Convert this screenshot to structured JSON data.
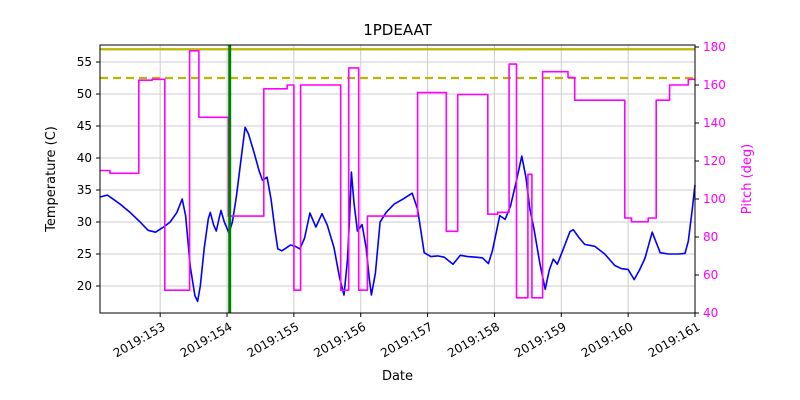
{
  "chart_data": {
    "type": "line",
    "title": "1PDEAAT",
    "xlabel": "Date",
    "ylabel_left": "Temperature (C)",
    "ylabel_right": "Pitch (deg)",
    "xlim": [
      152.1,
      161.0
    ],
    "ylim_left": [
      15.78,
      57.66
    ],
    "ylim_right": [
      40,
      181.05
    ],
    "grid": true,
    "legend": "none",
    "x_ticks": {
      "values": [
        153,
        154,
        155,
        156,
        157,
        158,
        159,
        160,
        161
      ],
      "labels": [
        "2019:153",
        "2019:154",
        "2019:155",
        "2019:156",
        "2019:157",
        "2019:158",
        "2019:159",
        "2019:160",
        "2019:161"
      ]
    },
    "y_left_ticks": [
      20,
      25,
      30,
      35,
      40,
      45,
      50,
      55
    ],
    "y_right_ticks": [
      40,
      60,
      80,
      100,
      120,
      140,
      160,
      180
    ],
    "colors": {
      "temperature": "#0000ff",
      "pitch": "#ff00ff",
      "limit": "#b8b800",
      "event": "#008000",
      "grid": "#cccccc",
      "frame": "#000000",
      "tick_text": "#000000"
    },
    "limit_lines": [
      {
        "name": "yellow-limit-line",
        "value": 57.0,
        "axis": "left",
        "style": "solid",
        "color_key": "limit"
      },
      {
        "name": "planning-limit-line",
        "value": 52.5,
        "axis": "left",
        "style": "dashed",
        "color_key": "limit"
      }
    ],
    "event_lines": [
      {
        "name": "current-time-line",
        "value": 154.04,
        "color_key": "event",
        "width": 3
      }
    ],
    "series": [
      {
        "name": "temperature",
        "axis": "left",
        "style": "line",
        "color_key": "temperature",
        "points": [
          [
            152.1,
            33.9
          ],
          [
            152.21,
            34.2
          ],
          [
            152.28,
            33.7
          ],
          [
            152.4,
            32.8
          ],
          [
            152.55,
            31.5
          ],
          [
            152.7,
            30.0
          ],
          [
            152.82,
            28.7
          ],
          [
            152.93,
            28.4
          ],
          [
            153.05,
            29.2
          ],
          [
            153.15,
            30.0
          ],
          [
            153.25,
            31.5
          ],
          [
            153.33,
            33.6
          ],
          [
            153.38,
            31.0
          ],
          [
            153.45,
            23.0
          ],
          [
            153.52,
            18.5
          ],
          [
            153.56,
            17.6
          ],
          [
            153.6,
            20.0
          ],
          [
            153.66,
            26.0
          ],
          [
            153.72,
            30.5
          ],
          [
            153.75,
            31.5
          ],
          [
            153.8,
            29.5
          ],
          [
            153.84,
            28.6
          ],
          [
            153.88,
            30.5
          ],
          [
            153.91,
            31.8
          ],
          [
            153.96,
            30.0
          ],
          [
            154.03,
            28.3
          ],
          [
            154.08,
            30.0
          ],
          [
            154.14,
            34.0
          ],
          [
            154.2,
            39.0
          ],
          [
            154.27,
            44.8
          ],
          [
            154.32,
            43.8
          ],
          [
            154.4,
            41.0
          ],
          [
            154.48,
            38.0
          ],
          [
            154.53,
            36.5
          ],
          [
            154.6,
            37.0
          ],
          [
            154.66,
            33.5
          ],
          [
            154.72,
            28.5
          ],
          [
            154.76,
            25.8
          ],
          [
            154.82,
            25.5
          ],
          [
            154.88,
            25.9
          ],
          [
            154.95,
            26.4
          ],
          [
            155.02,
            26.2
          ],
          [
            155.09,
            25.8
          ],
          [
            155.16,
            27.5
          ],
          [
            155.24,
            31.4
          ],
          [
            155.33,
            29.2
          ],
          [
            155.42,
            31.3
          ],
          [
            155.5,
            29.5
          ],
          [
            155.6,
            26.0
          ],
          [
            155.68,
            21.5
          ],
          [
            155.75,
            18.6
          ],
          [
            155.8,
            24.0
          ],
          [
            155.83,
            30.0
          ],
          [
            155.86,
            37.8
          ],
          [
            155.9,
            33.0
          ],
          [
            155.95,
            28.6
          ],
          [
            156.02,
            29.6
          ],
          [
            156.08,
            26.0
          ],
          [
            156.13,
            21.0
          ],
          [
            156.16,
            18.6
          ],
          [
            156.22,
            22.0
          ],
          [
            156.29,
            30.0
          ],
          [
            156.38,
            31.5
          ],
          [
            156.5,
            32.8
          ],
          [
            156.62,
            33.5
          ],
          [
            156.77,
            34.5
          ],
          [
            156.85,
            32.0
          ],
          [
            156.95,
            25.2
          ],
          [
            157.05,
            24.6
          ],
          [
            157.15,
            24.7
          ],
          [
            157.25,
            24.5
          ],
          [
            157.38,
            23.4
          ],
          [
            157.49,
            24.8
          ],
          [
            157.6,
            24.6
          ],
          [
            157.72,
            24.5
          ],
          [
            157.82,
            24.4
          ],
          [
            157.91,
            23.5
          ],
          [
            157.97,
            25.5
          ],
          [
            158.08,
            31.0
          ],
          [
            158.16,
            30.4
          ],
          [
            158.24,
            32.5
          ],
          [
            158.33,
            36.5
          ],
          [
            158.41,
            40.3
          ],
          [
            158.47,
            37.0
          ],
          [
            158.53,
            32.0
          ],
          [
            158.59,
            29.0
          ],
          [
            158.68,
            23.5
          ],
          [
            158.76,
            19.5
          ],
          [
            158.82,
            22.5
          ],
          [
            158.88,
            24.2
          ],
          [
            158.94,
            23.4
          ],
          [
            159.02,
            25.5
          ],
          [
            159.13,
            28.5
          ],
          [
            159.18,
            28.8
          ],
          [
            159.27,
            27.5
          ],
          [
            159.35,
            26.5
          ],
          [
            159.5,
            26.2
          ],
          [
            159.65,
            25.0
          ],
          [
            159.8,
            23.2
          ],
          [
            159.9,
            22.7
          ],
          [
            160.0,
            22.6
          ],
          [
            160.09,
            21.0
          ],
          [
            160.17,
            22.5
          ],
          [
            160.25,
            24.3
          ],
          [
            160.36,
            28.4
          ],
          [
            160.48,
            25.2
          ],
          [
            160.6,
            25.0
          ],
          [
            160.75,
            25.0
          ],
          [
            160.85,
            25.1
          ],
          [
            160.9,
            27.0
          ],
          [
            160.96,
            32.0
          ],
          [
            161.0,
            35.8
          ]
        ]
      },
      {
        "name": "pitch",
        "axis": "right",
        "style": "step",
        "color_key": "pitch",
        "points": [
          [
            152.1,
            115
          ],
          [
            152.25,
            113.5
          ],
          [
            152.68,
            162.5
          ],
          [
            152.88,
            163
          ],
          [
            153.07,
            52
          ],
          [
            153.44,
            178
          ],
          [
            153.58,
            143
          ],
          [
            154.02,
            91
          ],
          [
            154.55,
            158
          ],
          [
            154.9,
            160
          ],
          [
            155.0,
            52
          ],
          [
            155.1,
            160
          ],
          [
            155.7,
            52
          ],
          [
            155.82,
            169
          ],
          [
            155.97,
            52
          ],
          [
            156.1,
            91
          ],
          [
            156.85,
            156
          ],
          [
            157.28,
            83
          ],
          [
            157.45,
            155
          ],
          [
            157.9,
            92
          ],
          [
            158.05,
            93
          ],
          [
            158.22,
            171
          ],
          [
            158.33,
            48
          ],
          [
            158.5,
            113
          ],
          [
            158.56,
            48
          ],
          [
            158.72,
            167
          ],
          [
            159.1,
            164
          ],
          [
            159.2,
            152
          ],
          [
            159.95,
            90
          ],
          [
            160.05,
            88
          ],
          [
            160.3,
            90
          ],
          [
            160.42,
            152
          ],
          [
            160.62,
            160
          ],
          [
            160.9,
            163
          ],
          [
            161.0,
            163
          ]
        ]
      }
    ]
  }
}
